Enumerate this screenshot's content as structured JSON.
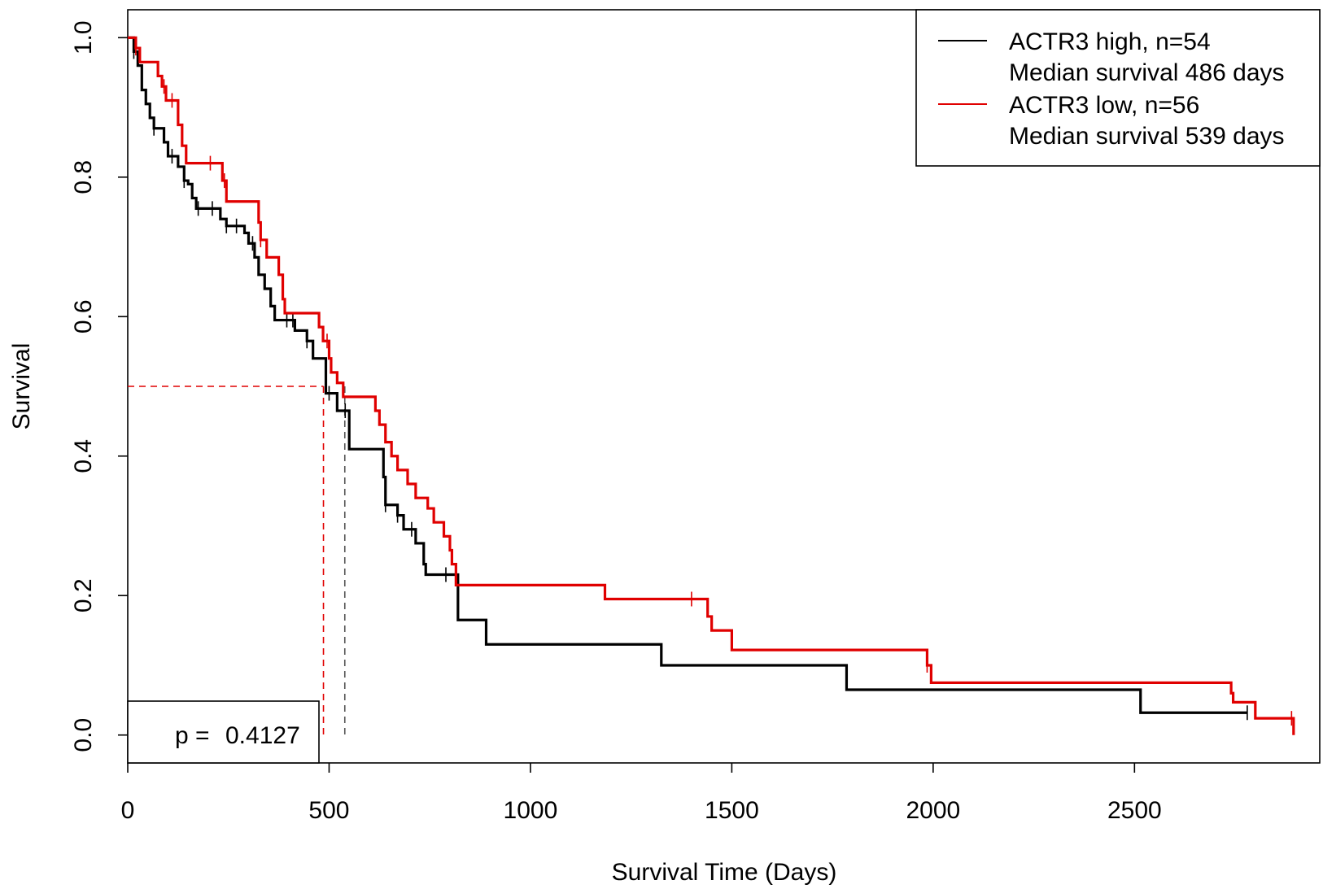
{
  "chart_data": {
    "type": "line",
    "subtype": "kaplan-meier-step",
    "title": "",
    "xlabel": "Survival Time (Days)",
    "ylabel": "Survival",
    "xlim": [
      0,
      2960
    ],
    "ylim": [
      -0.04,
      1.04
    ],
    "x_ticks": [
      "0",
      "500",
      "1000",
      "1500",
      "2000",
      "2500"
    ],
    "y_ticks": [
      "0.0",
      "0.2",
      "0.4",
      "0.6",
      "0.8",
      "1.0"
    ],
    "legend_position": "top-right",
    "legend": [
      {
        "line1": "ACTR3 high, n=54",
        "line2": "Median survival 486 days",
        "color": "#000000"
      },
      {
        "line1": "ACTR3 low, n=56",
        "line2": "Median survival 539 days",
        "color": "#e00000"
      }
    ],
    "p_value_label": "p =",
    "p_value": "0.4127",
    "median_line_y": 0.5,
    "series": [
      {
        "name": "ACTR3 high, n=54",
        "color": "#000000",
        "median_x": 486,
        "steps": [
          [
            0,
            1.0
          ],
          [
            15,
            0.98
          ],
          [
            25,
            0.96
          ],
          [
            35,
            0.925
          ],
          [
            45,
            0.905
          ],
          [
            55,
            0.885
          ],
          [
            65,
            0.87
          ],
          [
            80,
            0.87
          ],
          [
            90,
            0.85
          ],
          [
            100,
            0.83
          ],
          [
            110,
            0.83
          ],
          [
            125,
            0.815
          ],
          [
            140,
            0.795
          ],
          [
            150,
            0.79
          ],
          [
            160,
            0.77
          ],
          [
            170,
            0.755
          ],
          [
            210,
            0.755
          ],
          [
            230,
            0.74
          ],
          [
            245,
            0.73
          ],
          [
            280,
            0.73
          ],
          [
            290,
            0.72
          ],
          [
            300,
            0.705
          ],
          [
            315,
            0.685
          ],
          [
            325,
            0.66
          ],
          [
            340,
            0.64
          ],
          [
            355,
            0.615
          ],
          [
            365,
            0.595
          ],
          [
            415,
            0.58
          ],
          [
            445,
            0.565
          ],
          [
            460,
            0.54
          ],
          [
            490,
            0.54
          ],
          [
            492,
            0.49
          ],
          [
            520,
            0.465
          ],
          [
            545,
            0.465
          ],
          [
            550,
            0.41
          ],
          [
            630,
            0.41
          ],
          [
            635,
            0.37
          ],
          [
            640,
            0.33
          ],
          [
            660,
            0.33
          ],
          [
            670,
            0.315
          ],
          [
            685,
            0.295
          ],
          [
            705,
            0.295
          ],
          [
            715,
            0.275
          ],
          [
            735,
            0.245
          ],
          [
            740,
            0.23
          ],
          [
            815,
            0.23
          ],
          [
            820,
            0.165
          ],
          [
            885,
            0.165
          ],
          [
            890,
            0.13
          ],
          [
            1320,
            0.13
          ],
          [
            1325,
            0.1
          ],
          [
            1780,
            0.1
          ],
          [
            1785,
            0.065
          ],
          [
            2510,
            0.065
          ],
          [
            2515,
            0.032
          ],
          [
            2780,
            0.032
          ]
        ],
        "censor_x": [
          15,
          65,
          110,
          140,
          175,
          210,
          245,
          270,
          310,
          395,
          410,
          445,
          500,
          540,
          640,
          670,
          705,
          790,
          2780
        ]
      },
      {
        "name": "ACTR3 low, n=56",
        "color": "#e00000",
        "median_x": 539,
        "steps": [
          [
            0,
            1.0
          ],
          [
            20,
            0.985
          ],
          [
            30,
            0.965
          ],
          [
            70,
            0.965
          ],
          [
            75,
            0.945
          ],
          [
            85,
            0.93
          ],
          [
            95,
            0.91
          ],
          [
            120,
            0.91
          ],
          [
            125,
            0.875
          ],
          [
            135,
            0.845
          ],
          [
            145,
            0.82
          ],
          [
            225,
            0.82
          ],
          [
            235,
            0.795
          ],
          [
            245,
            0.765
          ],
          [
            320,
            0.765
          ],
          [
            325,
            0.735
          ],
          [
            330,
            0.71
          ],
          [
            345,
            0.685
          ],
          [
            370,
            0.685
          ],
          [
            375,
            0.66
          ],
          [
            385,
            0.625
          ],
          [
            390,
            0.605
          ],
          [
            470,
            0.605
          ],
          [
            475,
            0.585
          ],
          [
            485,
            0.565
          ],
          [
            500,
            0.54
          ],
          [
            505,
            0.52
          ],
          [
            520,
            0.505
          ],
          [
            535,
            0.485
          ],
          [
            610,
            0.485
          ],
          [
            615,
            0.465
          ],
          [
            625,
            0.445
          ],
          [
            640,
            0.42
          ],
          [
            655,
            0.4
          ],
          [
            670,
            0.38
          ],
          [
            695,
            0.36
          ],
          [
            715,
            0.34
          ],
          [
            745,
            0.325
          ],
          [
            760,
            0.305
          ],
          [
            785,
            0.285
          ],
          [
            800,
            0.265
          ],
          [
            805,
            0.245
          ],
          [
            815,
            0.215
          ],
          [
            1180,
            0.215
          ],
          [
            1185,
            0.195
          ],
          [
            1435,
            0.195
          ],
          [
            1440,
            0.17
          ],
          [
            1450,
            0.15
          ],
          [
            1495,
            0.15
          ],
          [
            1500,
            0.122
          ],
          [
            1980,
            0.122
          ],
          [
            1985,
            0.1
          ],
          [
            1995,
            0.075
          ],
          [
            2735,
            0.075
          ],
          [
            2740,
            0.06
          ],
          [
            2745,
            0.047
          ],
          [
            2795,
            0.047
          ],
          [
            2800,
            0.024
          ],
          [
            2890,
            0.024
          ],
          [
            2895,
            0.0
          ]
        ],
        "censor_x": [
          20,
          90,
          110,
          205,
          240,
          330,
          495,
          1400,
          1985,
          2890
        ]
      }
    ]
  }
}
